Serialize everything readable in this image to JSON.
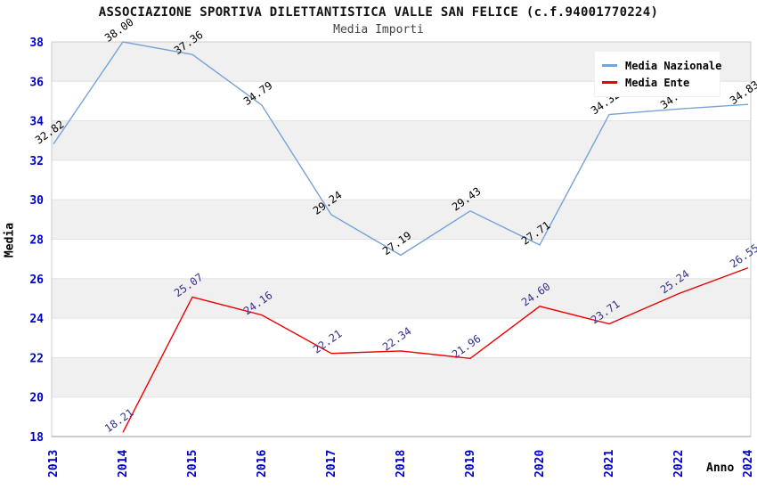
{
  "header": {
    "title": "ASSOCIAZIONE SPORTIVA DILETTANTISTICA VALLE SAN FELICE (c.f.94001770224)",
    "subtitle": "Media Importi"
  },
  "legend": {
    "items": [
      {
        "label": "Media Nazionale",
        "color": "#75a3d9"
      },
      {
        "label": "Media Ente",
        "color": "#ee0000"
      }
    ]
  },
  "axes": {
    "x_title": "Anno",
    "y_title": "Media"
  },
  "chart_data": {
    "type": "line",
    "title": "ASSOCIAZIONE SPORTIVA DILETTANTISTICA VALLE SAN FELICE (c.f.94001770224)",
    "subtitle": "Media Importi",
    "xlabel": "Anno",
    "ylabel": "Media",
    "categories": [
      "2013",
      "2014",
      "2015",
      "2016",
      "2017",
      "2018",
      "2019",
      "2020",
      "2021",
      "2022",
      "2024"
    ],
    "series": [
      {
        "name": "Media Nazionale",
        "color": "#75a3d9",
        "label_color": "#000000",
        "values": [
          32.82,
          38.0,
          37.36,
          34.79,
          29.24,
          27.19,
          29.43,
          27.71,
          34.32,
          34.6,
          34.83
        ]
      },
      {
        "name": "Media Ente",
        "color": "#ee0000",
        "label_color": "#333388",
        "values": [
          null,
          18.21,
          25.07,
          24.16,
          22.21,
          22.34,
          21.96,
          24.6,
          23.71,
          25.24,
          26.55
        ]
      }
    ],
    "ylim": [
      18,
      38
    ],
    "ytick_step": 2,
    "grid": "horizontal-bands",
    "band_colors": [
      "#f0f0f0",
      "#ffffff"
    ],
    "gridline_color": "#e2e2e2",
    "axis_tick_color": "#0000cc",
    "legend_position": "top-right"
  }
}
